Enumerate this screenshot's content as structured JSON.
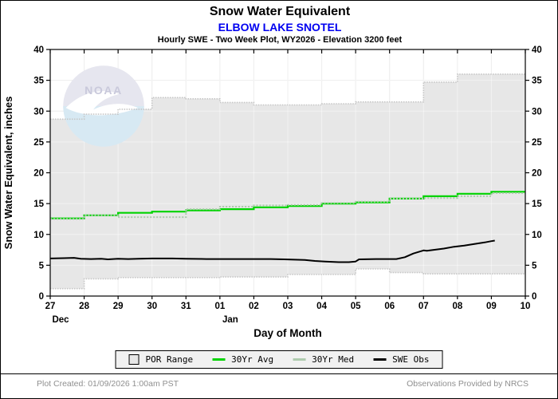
{
  "header": {
    "title": "Snow Water Equivalent",
    "station": "ELBOW LAKE SNOTEL",
    "subtitle": "Hourly SWE - Two Week Plot, WY2026 - Elevation 3200 feet"
  },
  "watermark": {
    "text": "NOAA"
  },
  "chart_data": {
    "type": "line",
    "title": "Snow Water Equivalent",
    "station": "ELBOW LAKE SNOTEL",
    "subtitle": "Hourly SWE - Two Week Plot, WY2026 - Elevation 3200 feet",
    "xlabel": "Day of Month",
    "ylabel": "Snow Water Equivalent, inches",
    "ylim": [
      0,
      40
    ],
    "ytick_interval": 5,
    "grid": true,
    "legend_position": "bottom",
    "x_days": [
      "27",
      "28",
      "29",
      "30",
      "31",
      "01",
      "02",
      "03",
      "04",
      "05",
      "06",
      "07",
      "08",
      "09",
      "10"
    ],
    "month_labels": [
      {
        "label": "Dec",
        "day_index": 0
      },
      {
        "label": "Jan",
        "day_index": 5
      }
    ],
    "series": [
      {
        "name": "POR Range",
        "type": "band",
        "fill": "#e7e7e7",
        "edge": "#c6c6c6",
        "upper_steps": [
          [
            0,
            28.7
          ],
          [
            1,
            29.5
          ],
          [
            2,
            30.3
          ],
          [
            3,
            32.2
          ],
          [
            4,
            32.0
          ],
          [
            5,
            31.4
          ],
          [
            6,
            31.0
          ],
          [
            8,
            31.2
          ],
          [
            9,
            31.5
          ],
          [
            11,
            34.7
          ],
          [
            12,
            36.0
          ],
          [
            14,
            36.0
          ]
        ],
        "lower_steps": [
          [
            0,
            1.2
          ],
          [
            1,
            2.8
          ],
          [
            2,
            3.0
          ],
          [
            5,
            3.1
          ],
          [
            7,
            3.5
          ],
          [
            9,
            4.4
          ],
          [
            10,
            3.8
          ],
          [
            11,
            3.6
          ],
          [
            14,
            3.6
          ]
        ]
      },
      {
        "name": "30Yr Avg",
        "type": "step",
        "color": "#00d300",
        "steps": [
          [
            0,
            12.6
          ],
          [
            1,
            13.1
          ],
          [
            2,
            13.5
          ],
          [
            3,
            13.7
          ],
          [
            4,
            13.9
          ],
          [
            5,
            14.1
          ],
          [
            6,
            14.4
          ],
          [
            7,
            14.6
          ],
          [
            8,
            15.0
          ],
          [
            9,
            15.2
          ],
          [
            10,
            15.8
          ],
          [
            11,
            16.2
          ],
          [
            12,
            16.6
          ],
          [
            13,
            16.9
          ],
          [
            14,
            16.9
          ]
        ]
      },
      {
        "name": "30Yr Med",
        "type": "step",
        "color": "#aecbae",
        "dashed": true,
        "steps": [
          [
            0,
            12.5
          ],
          [
            1,
            13.1
          ],
          [
            2,
            12.8
          ],
          [
            4,
            14.1
          ],
          [
            5,
            14.5
          ],
          [
            6,
            14.7
          ],
          [
            7,
            14.8
          ],
          [
            8,
            15.1
          ],
          [
            9,
            15.3
          ],
          [
            10,
            15.8
          ],
          [
            11,
            15.9
          ],
          [
            12,
            16.2
          ],
          [
            13,
            16.7
          ],
          [
            14,
            16.7
          ]
        ]
      },
      {
        "name": "SWE Obs",
        "type": "line",
        "color": "#000000",
        "points": [
          [
            0,
            6.1
          ],
          [
            0.4,
            6.15
          ],
          [
            0.7,
            6.2
          ],
          [
            0.9,
            6.05
          ],
          [
            1.2,
            6.0
          ],
          [
            1.5,
            6.05
          ],
          [
            1.7,
            5.95
          ],
          [
            2.0,
            6.05
          ],
          [
            2.3,
            6.0
          ],
          [
            2.6,
            6.05
          ],
          [
            3.0,
            6.1
          ],
          [
            3.6,
            6.1
          ],
          [
            4.0,
            6.05
          ],
          [
            4.6,
            6.0
          ],
          [
            5.5,
            6.0
          ],
          [
            6.5,
            6.0
          ],
          [
            6.9,
            5.95
          ],
          [
            7.2,
            5.9
          ],
          [
            7.5,
            5.85
          ],
          [
            7.8,
            5.7
          ],
          [
            8.1,
            5.6
          ],
          [
            8.5,
            5.5
          ],
          [
            8.8,
            5.5
          ],
          [
            9.0,
            5.6
          ],
          [
            9.1,
            5.95
          ],
          [
            9.6,
            6.0
          ],
          [
            10.2,
            6.0
          ],
          [
            10.45,
            6.3
          ],
          [
            10.7,
            6.9
          ],
          [
            11.0,
            7.4
          ],
          [
            11.1,
            7.35
          ],
          [
            11.3,
            7.5
          ],
          [
            11.6,
            7.7
          ],
          [
            11.9,
            8.0
          ],
          [
            12.2,
            8.2
          ],
          [
            12.5,
            8.45
          ],
          [
            12.8,
            8.7
          ],
          [
            13.0,
            8.9
          ],
          [
            13.1,
            9.0
          ]
        ]
      }
    ]
  },
  "legend": {
    "items": [
      {
        "label": "POR Range",
        "swatch": "box",
        "color": "#e7e7e7"
      },
      {
        "label": "30Yr Avg",
        "swatch": "line",
        "color": "#00d300"
      },
      {
        "label": "30Yr Med",
        "swatch": "line",
        "color": "#aecbae"
      },
      {
        "label": "SWE Obs",
        "swatch": "line",
        "color": "#000000"
      }
    ]
  },
  "footer": {
    "left": "Plot Created: 01/09/2026 1:00am PST",
    "right": "Observations Provided by NRCS"
  }
}
